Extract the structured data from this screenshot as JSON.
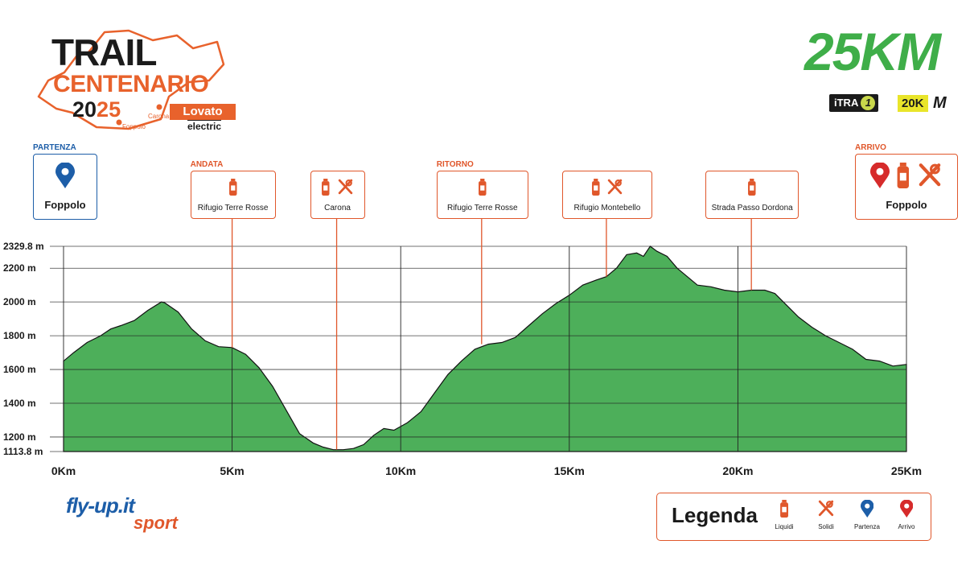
{
  "logo": {
    "line1": "TRAIL",
    "line2": "CENTENARIO",
    "year_a": "20",
    "year_b": "25",
    "place1": "Carona",
    "place2": "Foppolo",
    "sponsor": "Lovato",
    "sponsor_sub": "electric"
  },
  "distance_title": "25KM",
  "badges": {
    "itra_text": "iTRA",
    "itra_num": "1",
    "km_tag": "20K",
    "m_tag": "M"
  },
  "waypoints": [
    {
      "tag": "PARTENZA",
      "name": "Foppolo",
      "km": 0.0,
      "icons": [
        "pin-blue-icon"
      ],
      "style": "start"
    },
    {
      "tag": "ANDATA",
      "name": "Rifugio Terre Rosse",
      "km": 5.0,
      "icons": [
        "liquids-icon"
      ],
      "style": "small"
    },
    {
      "tag": "",
      "name": "Carona",
      "km": 8.1,
      "icons": [
        "liquids-icon",
        "solids-icon"
      ],
      "style": "small"
    },
    {
      "tag": "RITORNO",
      "name": "Rifugio Terre Rosse",
      "km": 12.4,
      "icons": [
        "liquids-icon"
      ],
      "style": "small"
    },
    {
      "tag": "",
      "name": "Rifugio Montebello",
      "km": 16.1,
      "icons": [
        "liquids-icon",
        "solids-icon"
      ],
      "style": "small"
    },
    {
      "tag": "",
      "name": "Strada Passo Dordona",
      "km": 20.4,
      "icons": [
        "liquids-icon"
      ],
      "style": "small"
    },
    {
      "tag": "ARRIVO",
      "name": "Foppolo",
      "km": 25.0,
      "icons": [
        "pin-red-icon",
        "liquids-icon",
        "solids-icon"
      ],
      "style": "finish"
    }
  ],
  "chart_data": {
    "type": "area",
    "xlabel": "",
    "ylabel": "",
    "x_ticks": [
      "0Km",
      "5Km",
      "10Km",
      "15Km",
      "20Km",
      "25Km"
    ],
    "y_ticks": [
      "2329.8 m",
      "2200 m",
      "2000 m",
      "1800 m",
      "1600 m",
      "1400 m",
      "1200 m",
      "1113.8 m"
    ],
    "ylim": [
      1113.8,
      2329.8
    ],
    "xlim": [
      0,
      25
    ],
    "grid": true,
    "fill_color": "#4daf5a",
    "series": [
      {
        "x": [
          0,
          0.3,
          0.7,
          1.1,
          1.4,
          1.7,
          2.1,
          2.5,
          2.9,
          3.0,
          3.4,
          3.8,
          4.2,
          4.6,
          5.0,
          5.4,
          5.8,
          6.2,
          6.6,
          7.0,
          7.4,
          7.7,
          8.0,
          8.3,
          8.6,
          8.9,
          9.2,
          9.5,
          9.8,
          10.2,
          10.6,
          11.0,
          11.4,
          11.8,
          12.2,
          12.6,
          13.0,
          13.4,
          13.8,
          14.2,
          14.6,
          15.0,
          15.4,
          15.8,
          16.1,
          16.4,
          16.7,
          17.0,
          17.2,
          17.4,
          17.6,
          17.9,
          18.2,
          18.5,
          18.8,
          19.2,
          19.6,
          20.0,
          20.4,
          20.8,
          21.1,
          21.4,
          21.8,
          22.2,
          22.6,
          23.0,
          23.4,
          23.8,
          24.2,
          24.6,
          25.0
        ],
        "values": [
          1650,
          1700,
          1760,
          1800,
          1840,
          1860,
          1890,
          1950,
          2000,
          1995,
          1940,
          1840,
          1770,
          1735,
          1730,
          1690,
          1610,
          1500,
          1360,
          1220,
          1165,
          1140,
          1125,
          1125,
          1132,
          1155,
          1210,
          1250,
          1240,
          1285,
          1350,
          1460,
          1570,
          1650,
          1720,
          1750,
          1760,
          1790,
          1860,
          1930,
          1990,
          2040,
          2100,
          2130,
          2150,
          2200,
          2280,
          2290,
          2270,
          2329.8,
          2300,
          2270,
          2200,
          2150,
          2100,
          2090,
          2070,
          2060,
          2070,
          2070,
          2050,
          1990,
          1910,
          1850,
          1800,
          1760,
          1720,
          1660,
          1650,
          1620,
          1630
        ]
      }
    ]
  },
  "legend": {
    "title": "Legenda",
    "items": [
      {
        "label": "Liquidi",
        "icon": "liquids-icon"
      },
      {
        "label": "Solidi",
        "icon": "solids-icon"
      },
      {
        "label": "Partenza",
        "icon": "pin-blue-icon"
      },
      {
        "label": "Arrivo",
        "icon": "pin-red-icon"
      }
    ]
  },
  "footer": {
    "brand": "fly-up.it",
    "brand_sub": "sport"
  },
  "colors": {
    "orange": "#e0572b",
    "blue": "#1d5ea8",
    "green": "#4daf5a",
    "red": "#d62b2b"
  }
}
